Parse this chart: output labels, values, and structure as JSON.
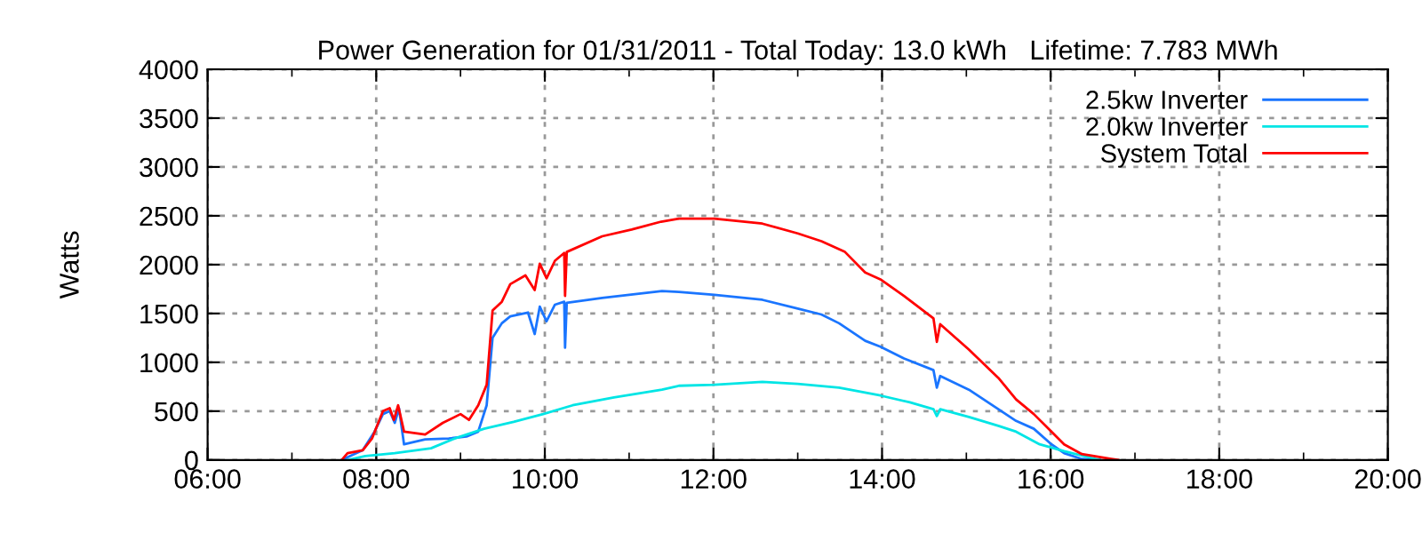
{
  "chart_data": {
    "type": "line",
    "title": "Power Generation for 01/31/2011 - Total Today: 13.0 kWh   Lifetime: 7.783 MWh",
    "ylabel": "Watts",
    "xlim": [
      6,
      20
    ],
    "ylim": [
      0,
      4000
    ],
    "xticks": [
      {
        "value": 6,
        "label": "06:00"
      },
      {
        "value": 7,
        "label": null
      },
      {
        "value": 8,
        "label": "08:00"
      },
      {
        "value": 9,
        "label": null
      },
      {
        "value": 10,
        "label": "10:00"
      },
      {
        "value": 11,
        "label": null
      },
      {
        "value": 12,
        "label": "12:00"
      },
      {
        "value": 13,
        "label": null
      },
      {
        "value": 14,
        "label": "14:00"
      },
      {
        "value": 15,
        "label": null
      },
      {
        "value": 16,
        "label": "16:00"
      },
      {
        "value": 17,
        "label": null
      },
      {
        "value": 18,
        "label": "18:00"
      },
      {
        "value": 19,
        "label": null
      },
      {
        "value": 20,
        "label": "20:00"
      }
    ],
    "yticks": [
      0,
      500,
      1000,
      1500,
      2000,
      2500,
      3000,
      3500,
      4000
    ],
    "grid": true,
    "legend": "top right",
    "marker": "none",
    "line_style": "solid",
    "series": [
      {
        "name": "2.5kw Inverter",
        "color": "#1a75ff",
        "x": [
          7.59,
          7.84,
          7.98,
          8.08,
          8.16,
          8.22,
          8.27,
          8.33,
          8.58,
          8.86,
          9.07,
          9.21,
          9.31,
          9.38,
          9.49,
          9.59,
          9.8,
          9.88,
          9.94,
          10.02,
          10.12,
          10.23,
          10.24,
          10.26,
          10.68,
          11.39,
          11.59,
          12.01,
          12.58,
          13.0,
          13.28,
          13.49,
          13.8,
          13.98,
          14.26,
          14.61,
          14.65,
          14.69,
          15.03,
          15.38,
          15.59,
          15.8,
          16.01,
          16.16,
          16.37,
          16.58
        ],
        "values": [
          0,
          100,
          290,
          470,
          500,
          380,
          530,
          160,
          210,
          220,
          240,
          290,
          560,
          1250,
          1400,
          1470,
          1510,
          1290,
          1570,
          1420,
          1590,
          1620,
          1150,
          1610,
          1660,
          1730,
          1720,
          1690,
          1640,
          1550,
          1490,
          1400,
          1220,
          1160,
          1040,
          920,
          740,
          860,
          720,
          520,
          400,
          320,
          160,
          70,
          10,
          0
        ]
      },
      {
        "name": "2.0kw Inverter",
        "color": "#00e5e5",
        "x": [
          7.66,
          7.87,
          8.22,
          8.65,
          8.93,
          9.28,
          9.63,
          9.98,
          10.33,
          10.82,
          11.39,
          11.59,
          12.01,
          12.58,
          13.0,
          13.49,
          13.98,
          14.33,
          14.61,
          14.65,
          14.69,
          15.03,
          15.38,
          15.59,
          15.87,
          16.16,
          16.44,
          16.58
        ],
        "values": [
          0,
          40,
          70,
          120,
          220,
          320,
          390,
          470,
          560,
          640,
          720,
          760,
          770,
          800,
          780,
          740,
          660,
          590,
          520,
          450,
          520,
          440,
          350,
          290,
          160,
          90,
          30,
          0
        ]
      },
      {
        "name": "System Total",
        "color": "#ff0000",
        "x": [
          7.59,
          7.66,
          7.84,
          7.95,
          8.08,
          8.16,
          8.21,
          8.26,
          8.33,
          8.58,
          8.79,
          9.0,
          9.1,
          9.21,
          9.31,
          9.38,
          9.49,
          9.59,
          9.77,
          9.88,
          9.94,
          10.02,
          10.12,
          10.23,
          10.24,
          10.26,
          10.68,
          11.03,
          11.38,
          11.59,
          12.01,
          12.58,
          13.0,
          13.28,
          13.56,
          13.8,
          13.98,
          14.26,
          14.61,
          14.65,
          14.69,
          15.03,
          15.38,
          15.59,
          15.8,
          16.01,
          16.16,
          16.37,
          16.72,
          16.8
        ],
        "values": [
          0,
          70,
          100,
          220,
          500,
          530,
          410,
          560,
          290,
          260,
          380,
          470,
          410,
          560,
          770,
          1530,
          1620,
          1800,
          1890,
          1740,
          2010,
          1860,
          2040,
          2120,
          1680,
          2130,
          2290,
          2360,
          2440,
          2470,
          2470,
          2420,
          2320,
          2240,
          2130,
          1920,
          1850,
          1680,
          1450,
          1210,
          1390,
          1130,
          840,
          620,
          470,
          290,
          160,
          60,
          10,
          0
        ]
      }
    ]
  }
}
